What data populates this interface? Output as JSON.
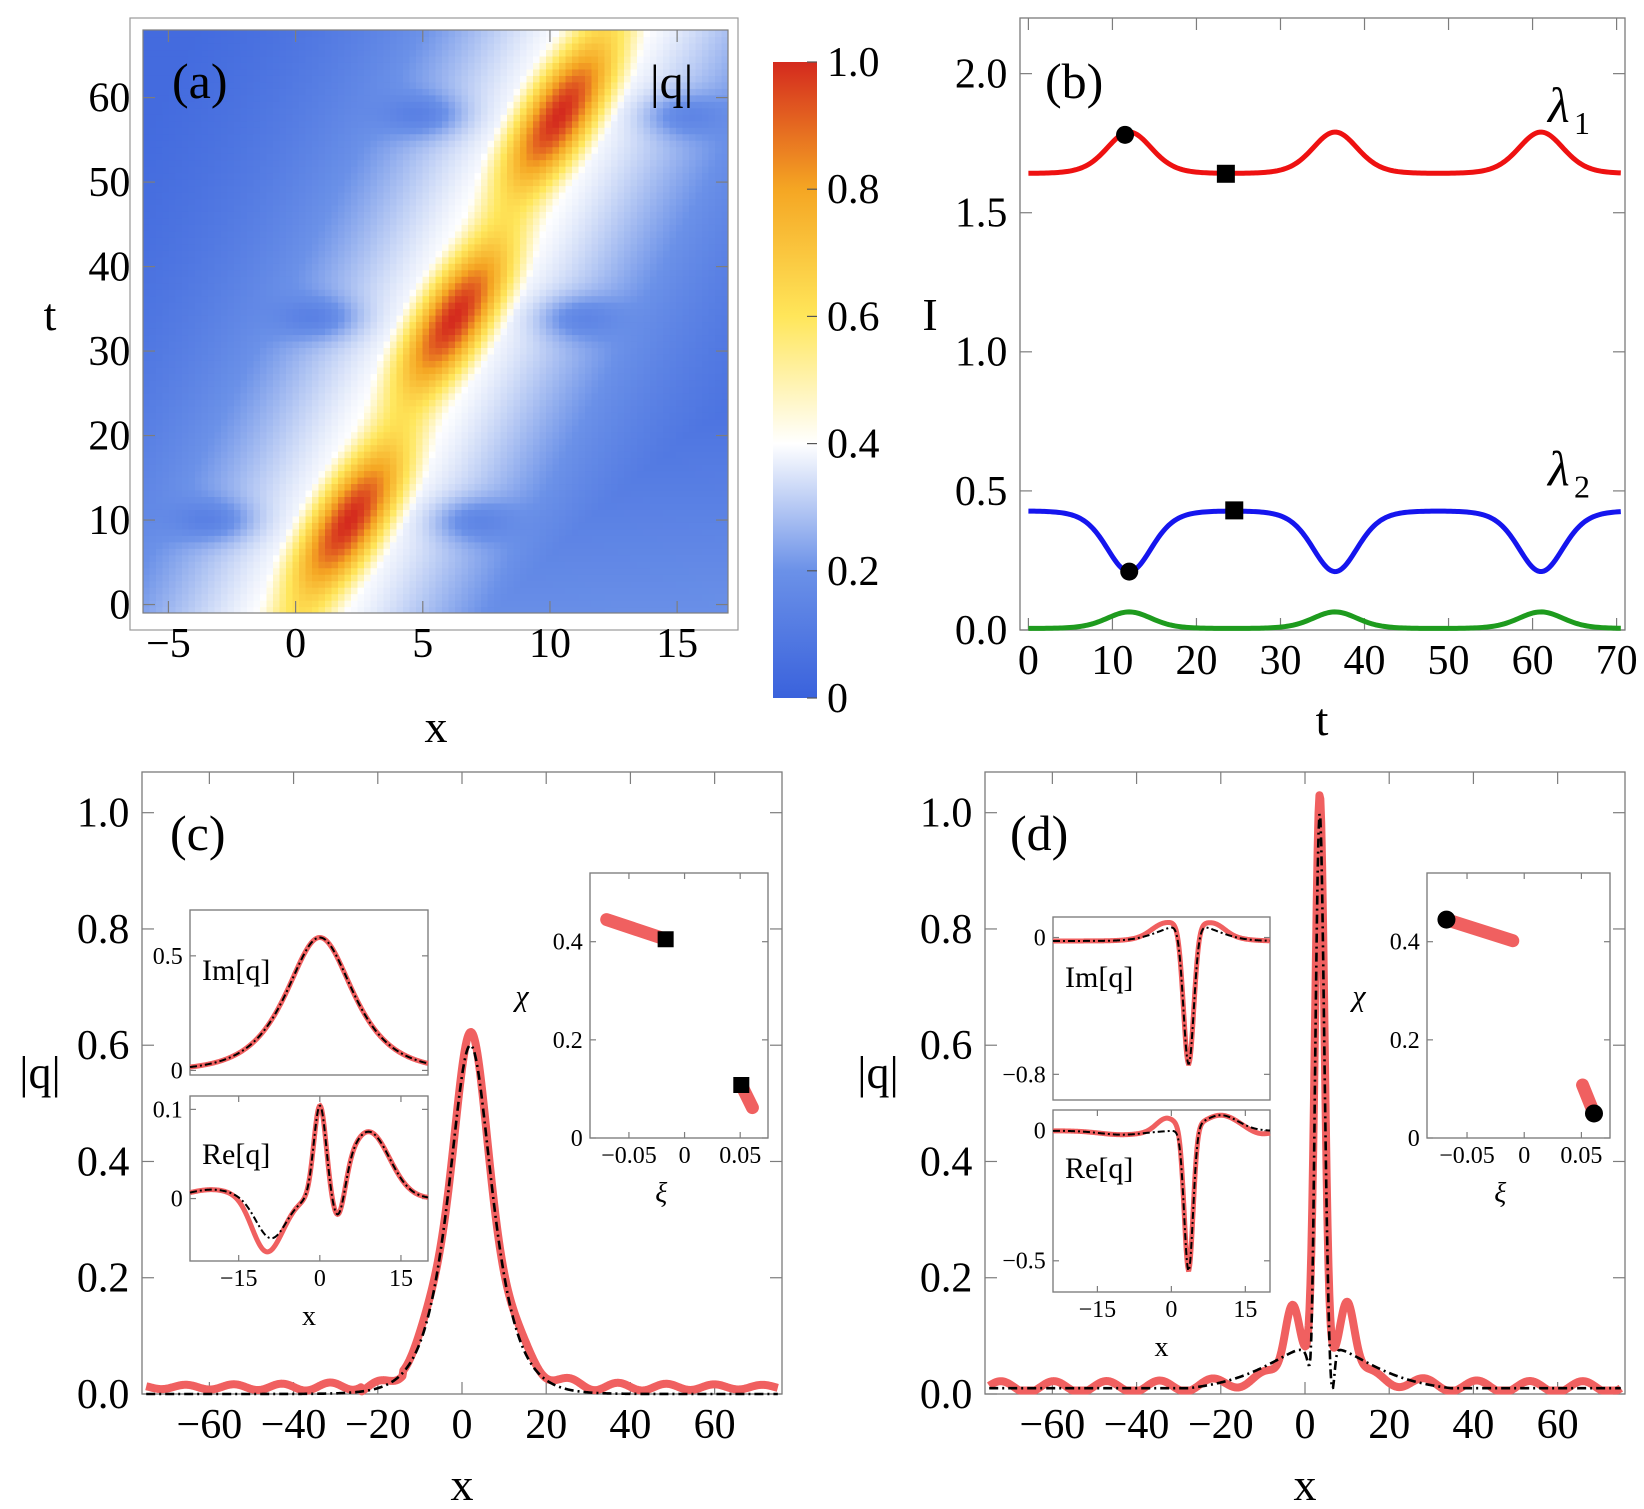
{
  "chart_data": [
    {
      "id": "a",
      "type": "heatmap",
      "panel_label": "(a)",
      "xlabel": "x",
      "ylabel": "t",
      "xlim": [
        -6,
        17
      ],
      "ylim": [
        -1,
        68
      ],
      "xticks": [
        -5,
        0,
        5,
        10,
        15
      ],
      "xtick_labels": [
        "−5",
        "0",
        "5",
        "10",
        "15"
      ],
      "yticks": [
        0,
        10,
        20,
        30,
        40,
        50,
        60
      ],
      "yticks_labels": [
        "0",
        "10",
        "20",
        "30",
        "40",
        "50",
        "60"
      ],
      "field_label": "|q|",
      "colorbar": {
        "range": [
          0,
          1.0
        ],
        "ticks": [
          0,
          0.2,
          0.4,
          0.6,
          0.8,
          1.0
        ],
        "tick_labels": [
          "0",
          "0.2",
          "0.4",
          "0.6",
          "0.8",
          "1.0"
        ],
        "colors": [
          "#3a62dc",
          "#6b91e8",
          "#ffffff",
          "#ffe65a",
          "#f5a623",
          "#d42a1e"
        ]
      },
      "ridge": {
        "x0": 0.4,
        "slope_dx_dt": 0.172,
        "peaks_t": [
          10,
          34,
          58
        ],
        "period_t": 24,
        "width": 1.4,
        "peak_amp": 1.0,
        "trough_amp": 0.62
      },
      "side_dips_t": [
        10,
        34,
        58
      ]
    },
    {
      "id": "b",
      "type": "line",
      "panel_label": "(b)",
      "xlabel": "t",
      "ylabel": "I",
      "xlim": [
        -1,
        71
      ],
      "ylim": [
        0,
        2.2
      ],
      "xticks": [
        0,
        10,
        20,
        30,
        40,
        50,
        60,
        70
      ],
      "xtick_labels": [
        "0",
        "10",
        "20",
        "30",
        "40",
        "50",
        "60",
        "70"
      ],
      "yticks": [
        0,
        0.5,
        1.0,
        1.5,
        2.0
      ],
      "ytick_labels": [
        "0.0",
        "0.5",
        "1.0",
        "1.5",
        "2.0"
      ],
      "period": 24.5,
      "series": [
        {
          "name": "λ₁",
          "label": "λ",
          "subscript": "1",
          "color": "#ee1111",
          "base": 1.64,
          "amp": 0.15,
          "shape": "peak",
          "phase_t": 12
        },
        {
          "name": "λ₂",
          "label": "λ",
          "subscript": "2",
          "color": "#1515ee",
          "base": 0.43,
          "amp": -0.22,
          "shape": "dip",
          "phase_t": 12
        },
        {
          "name": "",
          "label": "",
          "subscript": "",
          "color": "#1e9b1e",
          "base": 0.005,
          "amp": 0.06,
          "shape": "peak",
          "phase_t": 12
        }
      ],
      "markers": [
        {
          "shape": "circle",
          "t": 11.5,
          "I": 1.78
        },
        {
          "shape": "square",
          "t": 23.5,
          "I": 1.64
        },
        {
          "shape": "circle",
          "t": 12,
          "I": 0.21
        },
        {
          "shape": "square",
          "t": 24.5,
          "I": 0.43
        }
      ]
    },
    {
      "id": "c",
      "type": "line",
      "panel_label": "(c)",
      "xlabel": "x",
      "ylabel": "|q|",
      "xlim": [
        -76,
        76
      ],
      "ylim": [
        0,
        1.07
      ],
      "xticks": [
        -60,
        -40,
        -20,
        0,
        20,
        40,
        60
      ],
      "xtick_labels": [
        "−60",
        "−40",
        "−20",
        "0",
        "20",
        "40",
        "60"
      ],
      "yticks": [
        0,
        0.2,
        0.4,
        0.6,
        0.8,
        1.0
      ],
      "ytick_labels": [
        "0.0",
        "0.2",
        "0.4",
        "0.6",
        "0.8",
        "1.0"
      ],
      "peak": {
        "x": 2,
        "value": 0.6
      },
      "insets": [
        {
          "id": "c-im",
          "label": "Im[q]",
          "xlim": [
            -24,
            20
          ],
          "ylim": [
            -0.02,
            0.7
          ],
          "yticks": [
            0,
            0.5
          ],
          "ytick_labels": [
            "0",
            "0.5"
          ],
          "xticks": [],
          "xtick_labels": [],
          "xlabel": ""
        },
        {
          "id": "c-re",
          "label": "Re[q]",
          "xlim": [
            -24,
            20
          ],
          "ylim": [
            -0.07,
            0.115
          ],
          "yticks": [
            0,
            0.1
          ],
          "ytick_labels": [
            "0",
            "0.1"
          ],
          "xticks": [
            -15,
            0,
            15
          ],
          "xtick_labels": [
            "−15",
            "0",
            "15"
          ],
          "xlabel": "x"
        },
        {
          "id": "c-phase",
          "label": "",
          "xlim": [
            -0.085,
            0.075
          ],
          "ylim": [
            0,
            0.54
          ],
          "xticks": [
            -0.05,
            0,
            0.05
          ],
          "xtick_labels": [
            "−0.05",
            "0",
            "0.05"
          ],
          "yticks": [
            0,
            0.2,
            0.4
          ],
          "ytick_labels": [
            "0",
            "0.2",
            "0.4"
          ],
          "xlabel": "ξ",
          "ylabel": "χ",
          "segments": [
            [
              [
                -0.07,
                0.445
              ],
              [
                -0.017,
                0.405
              ]
            ],
            [
              [
                0.051,
                0.108
              ],
              [
                0.061,
                0.062
              ]
            ]
          ],
          "markers": [
            {
              "shape": "square",
              "x": -0.017,
              "y": 0.405
            },
            {
              "shape": "square",
              "x": 0.051,
              "y": 0.108
            }
          ]
        }
      ]
    },
    {
      "id": "d",
      "type": "line",
      "panel_label": "(d)",
      "xlabel": "x",
      "ylabel": "|q|",
      "xlim": [
        -76,
        76
      ],
      "ylim": [
        0,
        1.07
      ],
      "xticks": [
        -60,
        -40,
        -20,
        0,
        20,
        40,
        60
      ],
      "xtick_labels": [
        "−60",
        "−40",
        "−20",
        "0",
        "20",
        "40",
        "60"
      ],
      "yticks": [
        0,
        0.2,
        0.4,
        0.6,
        0.8,
        1.0
      ],
      "ytick_labels": [
        "0.0",
        "0.2",
        "0.4",
        "0.6",
        "0.8",
        "1.0"
      ],
      "peak": {
        "x": 3.5,
        "value": 1.0
      },
      "insets": [
        {
          "id": "d-im",
          "label": "Im[q]",
          "xlim": [
            -24,
            20
          ],
          "ylim": [
            -0.95,
            0.12
          ],
          "yticks": [
            0,
            -0.8
          ],
          "ytick_labels": [
            "0",
            "−0.8"
          ],
          "xticks": [],
          "xtick_labels": [],
          "xlabel": ""
        },
        {
          "id": "d-re",
          "label": "Re[q]",
          "xlim": [
            -24,
            20
          ],
          "ylim": [
            -0.62,
            0.08
          ],
          "yticks": [
            0,
            -0.5
          ],
          "ytick_labels": [
            "0",
            "−0.5"
          ],
          "xticks": [
            -15,
            0,
            15
          ],
          "xtick_labels": [
            "−15",
            "0",
            "15"
          ],
          "xlabel": "x"
        },
        {
          "id": "d-phase",
          "label": "",
          "xlim": [
            -0.085,
            0.075
          ],
          "ylim": [
            0,
            0.54
          ],
          "xticks": [
            -0.05,
            0,
            0.05
          ],
          "xtick_labels": [
            "−0.05",
            "0",
            "0.05"
          ],
          "yticks": [
            0,
            0.2,
            0.4
          ],
          "ytick_labels": [
            "0",
            "0.2",
            "0.4"
          ],
          "xlabel": "ξ",
          "ylabel": "χ",
          "segments": [
            [
              [
                -0.068,
                0.445
              ],
              [
                -0.01,
                0.402
              ]
            ],
            [
              [
                0.051,
                0.108
              ],
              [
                0.061,
                0.05
              ]
            ]
          ],
          "markers": [
            {
              "shape": "circle",
              "x": -0.068,
              "y": 0.445
            },
            {
              "shape": "circle",
              "x": 0.061,
              "y": 0.05
            }
          ]
        }
      ]
    }
  ]
}
